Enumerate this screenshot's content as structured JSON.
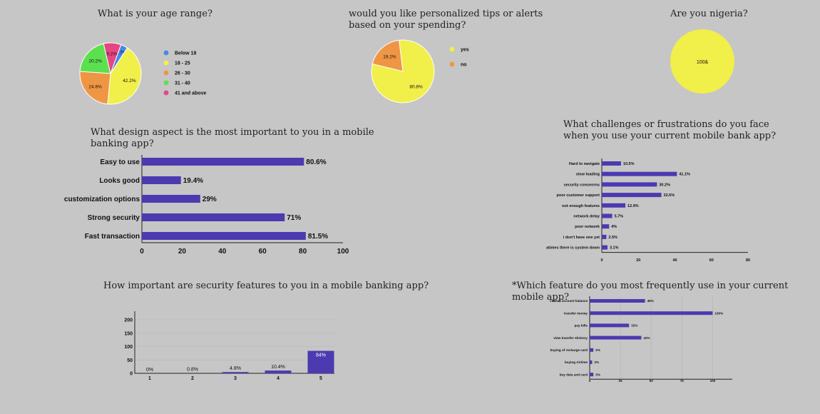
{
  "titles": {
    "age": "What is your age range?",
    "tips_l1": "would you like personalized tips or alerts",
    "tips_l2": "based on your spending?",
    "nigeria": "Are you nigeria?",
    "design_l1": "What design aspect is the most important to you in a mobile",
    "design_l2": "banking app?",
    "challenges_l1": "What challenges or frustrations do you face",
    "challenges_l2": "when you use your current mobile bank app?",
    "security": "How important are security features to you in a mobile banking app?",
    "feature": "*Which feature do you most frequently use in your current mobile app?"
  },
  "chart_data": [
    {
      "id": "age",
      "type": "pie",
      "title": "What is your age range?",
      "slices": [
        {
          "label": "Below 18",
          "value": 3.7,
          "display": "3.7%",
          "color": "#4a86e8"
        },
        {
          "label": "18 - 25",
          "value": 42.2,
          "display": "42.2%",
          "color": "#f1ef4a"
        },
        {
          "label": "26 - 30",
          "value": 24.6,
          "display": "24.6%",
          "color": "#ef9644"
        },
        {
          "label": "31 - 40",
          "value": 20.2,
          "display": "20.2%",
          "color": "#5de04f"
        },
        {
          "label": "41 and above",
          "value": 9.2,
          "display": "9.2%",
          "color": "#e64582"
        }
      ],
      "legend": "right"
    },
    {
      "id": "tips",
      "type": "pie",
      "title": "would you like personalized tips or alerts based on your spending?",
      "slices": [
        {
          "label": "yes",
          "value": 80.8,
          "display": "80.8%",
          "color": "#f1ef4a"
        },
        {
          "label": "no",
          "value": 19.2,
          "display": "19.2%",
          "color": "#ef9644"
        }
      ],
      "legend": "right"
    },
    {
      "id": "nigeria",
      "type": "pie",
      "title": "Are you nigeria?",
      "slices": [
        {
          "label": "",
          "value": 100,
          "display": "100&",
          "color": "#f1ef4a"
        }
      ]
    },
    {
      "id": "design",
      "type": "bar",
      "orientation": "horizontal",
      "title": "What design aspect is the most important to you in a mobile banking app?",
      "categories": [
        "Easy to use",
        "Looks good",
        "customization options",
        "Strong security",
        "Fast transaction"
      ],
      "values": [
        80.6,
        19.4,
        29,
        71,
        81.5
      ],
      "labels": [
        "80.6%",
        "19.4%",
        "29%",
        "71%",
        "81.5%"
      ],
      "xlim": [
        0,
        100
      ],
      "xticks": [
        0,
        20,
        40,
        60,
        80,
        100
      ],
      "color": "#4b3ab0"
    },
    {
      "id": "challenges",
      "type": "bar",
      "orientation": "horizontal",
      "title": "What challenges or frustrations do you face when you use your current mobile bank app?",
      "categories": [
        "Hard to navigate",
        "slow loading",
        "security concenrns",
        "poor customer support",
        "not enough features",
        "network delay",
        "poor network",
        "i don't have one yet",
        "atimes there is system down"
      ],
      "values": [
        10.5,
        41.1,
        30.2,
        32.6,
        12.9,
        5.7,
        4,
        2.5,
        3.1
      ],
      "labels": [
        "10.5%",
        "41.1%",
        "30.2%",
        "32.6%",
        "12.9%",
        "5.7%",
        "4%",
        "2.5%",
        "3.1%"
      ],
      "xlim": [
        0,
        80
      ],
      "xticks": [
        0,
        20,
        40,
        60,
        80
      ],
      "color": "#4b3ab0"
    },
    {
      "id": "security",
      "type": "bar",
      "orientation": "vertical",
      "title": "How important are security features to you in a mobile banking app?",
      "categories": [
        "1",
        "2",
        "3",
        "4",
        "5"
      ],
      "values": [
        0,
        0.8,
        4.8,
        10.4,
        84
      ],
      "labels": [
        "0%",
        "0.8%",
        "4.8%",
        "10.4%",
        "84%"
      ],
      "ylim": [
        0,
        200
      ],
      "yticks": [
        0,
        50,
        100,
        150,
        200
      ],
      "grid": true,
      "color": "#4b3ab0"
    },
    {
      "id": "feature",
      "type": "bar",
      "orientation": "horizontal",
      "title": "*Which feature do you most frequently use in your current mobile app?",
      "categories": [
        "cheack account balance",
        "transfer money",
        "pay bills",
        "view transfer nhistory",
        "buying of recharge card",
        "buying Airtime",
        "buy data and card"
      ],
      "values": [
        45,
        100,
        32,
        42,
        3,
        2,
        3
      ],
      "labels": [
        "45%",
        "100%",
        "32%",
        "42%",
        "3%",
        "2%",
        "3%"
      ],
      "xlim": [
        0,
        116
      ],
      "xticks": [
        0,
        25,
        50,
        75,
        100
      ],
      "grid": true,
      "color": "#4b3ab0"
    }
  ]
}
